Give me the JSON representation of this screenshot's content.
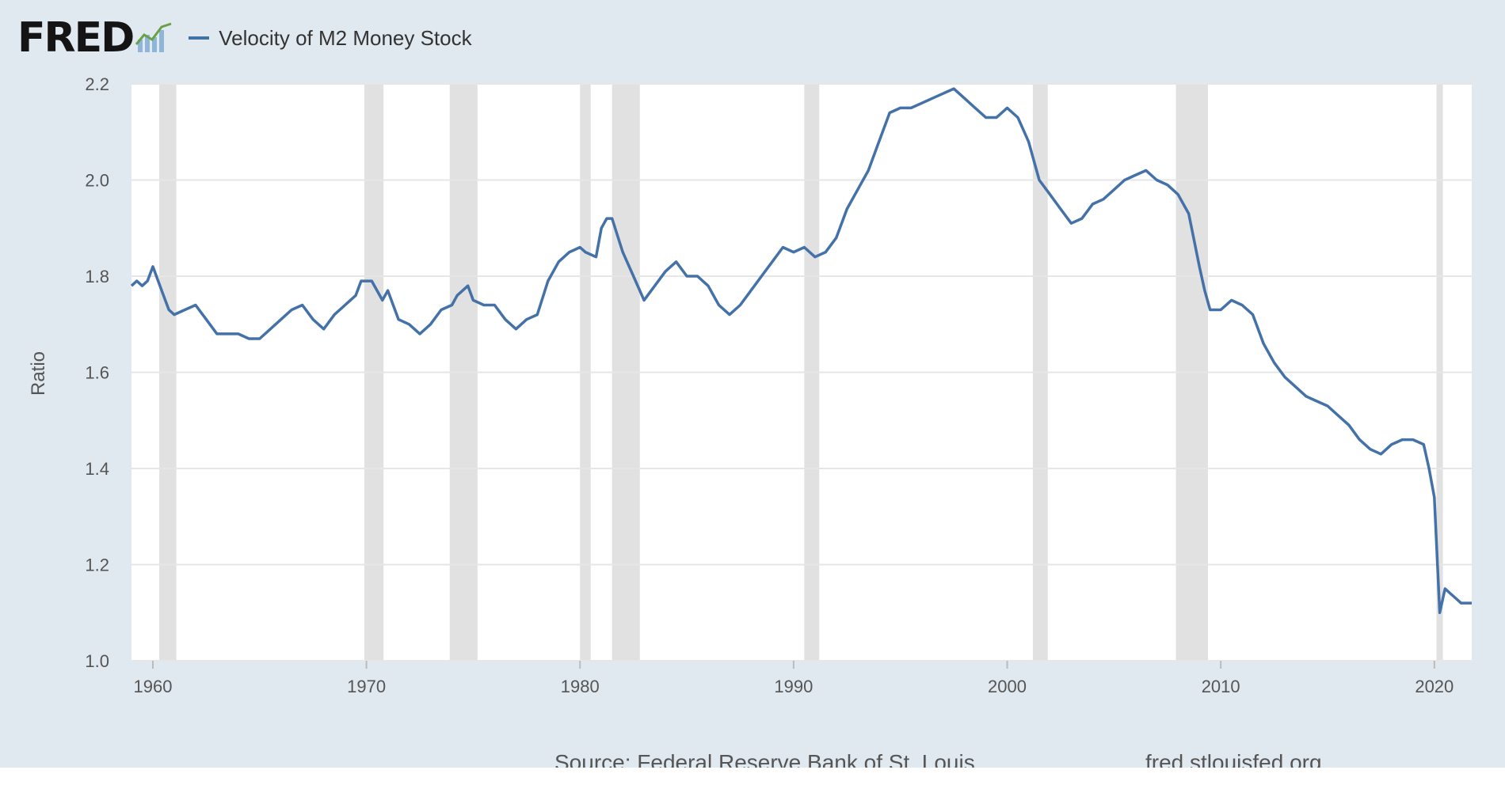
{
  "header": {
    "logo_text": "FRED",
    "logo_icon": "chart-line-icon",
    "legend_label": "Velocity of M2 Money Stock"
  },
  "colors": {
    "series": "#4472a8",
    "recession": "#e1e1e1",
    "background": "#e1e9f0",
    "plot": "#ffffff"
  },
  "footer": {
    "source": "Source: Federal Reserve Bank of St. Louis",
    "url": "fred.stlouisfed.org"
  },
  "chart_data": {
    "type": "line",
    "ylabel": "Ratio",
    "xlabel": "",
    "xlim": [
      1959.0,
      2021.75
    ],
    "ylim": [
      1.0,
      2.2
    ],
    "xticks": [
      1960,
      1970,
      1980,
      1990,
      2000,
      2010,
      2020
    ],
    "yticks": [
      1.0,
      1.2,
      1.4,
      1.6,
      1.8,
      2.0,
      2.2
    ],
    "grid": "horizontal",
    "legend": "top-left",
    "recessions": [
      [
        1960.3,
        1961.1
      ],
      [
        1969.9,
        1970.8
      ],
      [
        1973.9,
        1975.2
      ],
      [
        1980.0,
        1980.5
      ],
      [
        1981.5,
        1982.8
      ],
      [
        1990.5,
        1991.2
      ],
      [
        2001.2,
        2001.9
      ],
      [
        2007.9,
        2009.4
      ],
      [
        2020.1,
        2020.4
      ]
    ],
    "series": [
      {
        "name": "Velocity of M2 Money Stock",
        "x": [
          1959.0,
          1959.25,
          1959.5,
          1959.75,
          1960.0,
          1960.25,
          1960.5,
          1960.75,
          1961.0,
          1961.5,
          1962.0,
          1962.5,
          1963.0,
          1963.5,
          1964.0,
          1964.5,
          1965.0,
          1965.5,
          1966.0,
          1966.5,
          1967.0,
          1967.5,
          1968.0,
          1968.5,
          1969.0,
          1969.5,
          1969.75,
          1970.25,
          1970.75,
          1971.0,
          1971.5,
          1972.0,
          1972.5,
          1973.0,
          1973.5,
          1974.0,
          1974.25,
          1974.75,
          1975.0,
          1975.5,
          1976.0,
          1976.5,
          1977.0,
          1977.5,
          1978.0,
          1978.5,
          1979.0,
          1979.5,
          1980.0,
          1980.25,
          1980.75,
          1981.0,
          1981.25,
          1981.5,
          1982.0,
          1982.5,
          1983.0,
          1983.5,
          1984.0,
          1984.5,
          1985.0,
          1985.5,
          1986.0,
          1986.5,
          1987.0,
          1987.5,
          1988.0,
          1988.5,
          1989.0,
          1989.5,
          1990.0,
          1990.5,
          1991.0,
          1991.5,
          1992.0,
          1992.5,
          1993.0,
          1993.5,
          1994.0,
          1994.5,
          1995.0,
          1995.5,
          1996.0,
          1996.5,
          1997.0,
          1997.5,
          1998.0,
          1998.5,
          1999.0,
          1999.5,
          2000.0,
          2000.5,
          2001.0,
          2001.5,
          2002.0,
          2002.5,
          2003.0,
          2003.5,
          2004.0,
          2004.5,
          2005.0,
          2005.5,
          2006.0,
          2006.5,
          2007.0,
          2007.5,
          2008.0,
          2008.5,
          2009.0,
          2009.25,
          2009.5,
          2010.0,
          2010.5,
          2011.0,
          2011.5,
          2012.0,
          2012.5,
          2013.0,
          2013.5,
          2014.0,
          2014.5,
          2015.0,
          2015.5,
          2016.0,
          2016.5,
          2017.0,
          2017.5,
          2018.0,
          2018.5,
          2019.0,
          2019.5,
          2019.75,
          2020.0,
          2020.25,
          2020.5,
          2020.75,
          2021.0,
          2021.25,
          2021.5,
          2021.75
        ],
        "values": [
          1.78,
          1.79,
          1.78,
          1.79,
          1.82,
          1.79,
          1.76,
          1.73,
          1.72,
          1.73,
          1.74,
          1.71,
          1.68,
          1.68,
          1.68,
          1.67,
          1.67,
          1.69,
          1.71,
          1.73,
          1.74,
          1.71,
          1.69,
          1.72,
          1.74,
          1.76,
          1.79,
          1.79,
          1.75,
          1.77,
          1.71,
          1.7,
          1.68,
          1.7,
          1.73,
          1.74,
          1.76,
          1.78,
          1.75,
          1.74,
          1.74,
          1.71,
          1.69,
          1.71,
          1.72,
          1.79,
          1.83,
          1.85,
          1.86,
          1.85,
          1.84,
          1.9,
          1.92,
          1.92,
          1.85,
          1.8,
          1.75,
          1.78,
          1.81,
          1.83,
          1.8,
          1.8,
          1.78,
          1.74,
          1.72,
          1.74,
          1.77,
          1.8,
          1.83,
          1.86,
          1.85,
          1.86,
          1.84,
          1.85,
          1.88,
          1.94,
          1.98,
          2.02,
          2.08,
          2.14,
          2.15,
          2.15,
          2.16,
          2.17,
          2.18,
          2.19,
          2.17,
          2.15,
          2.13,
          2.13,
          2.15,
          2.13,
          2.08,
          2.0,
          1.97,
          1.94,
          1.91,
          1.92,
          1.95,
          1.96,
          1.98,
          2.0,
          2.01,
          2.02,
          2.0,
          1.99,
          1.97,
          1.93,
          1.82,
          1.77,
          1.73,
          1.73,
          1.75,
          1.74,
          1.72,
          1.66,
          1.62,
          1.59,
          1.57,
          1.55,
          1.54,
          1.53,
          1.51,
          1.49,
          1.46,
          1.44,
          1.43,
          1.45,
          1.46,
          1.46,
          1.45,
          1.4,
          1.34,
          1.1,
          1.15,
          1.14,
          1.13,
          1.12,
          1.12,
          1.12
        ]
      }
    ]
  }
}
